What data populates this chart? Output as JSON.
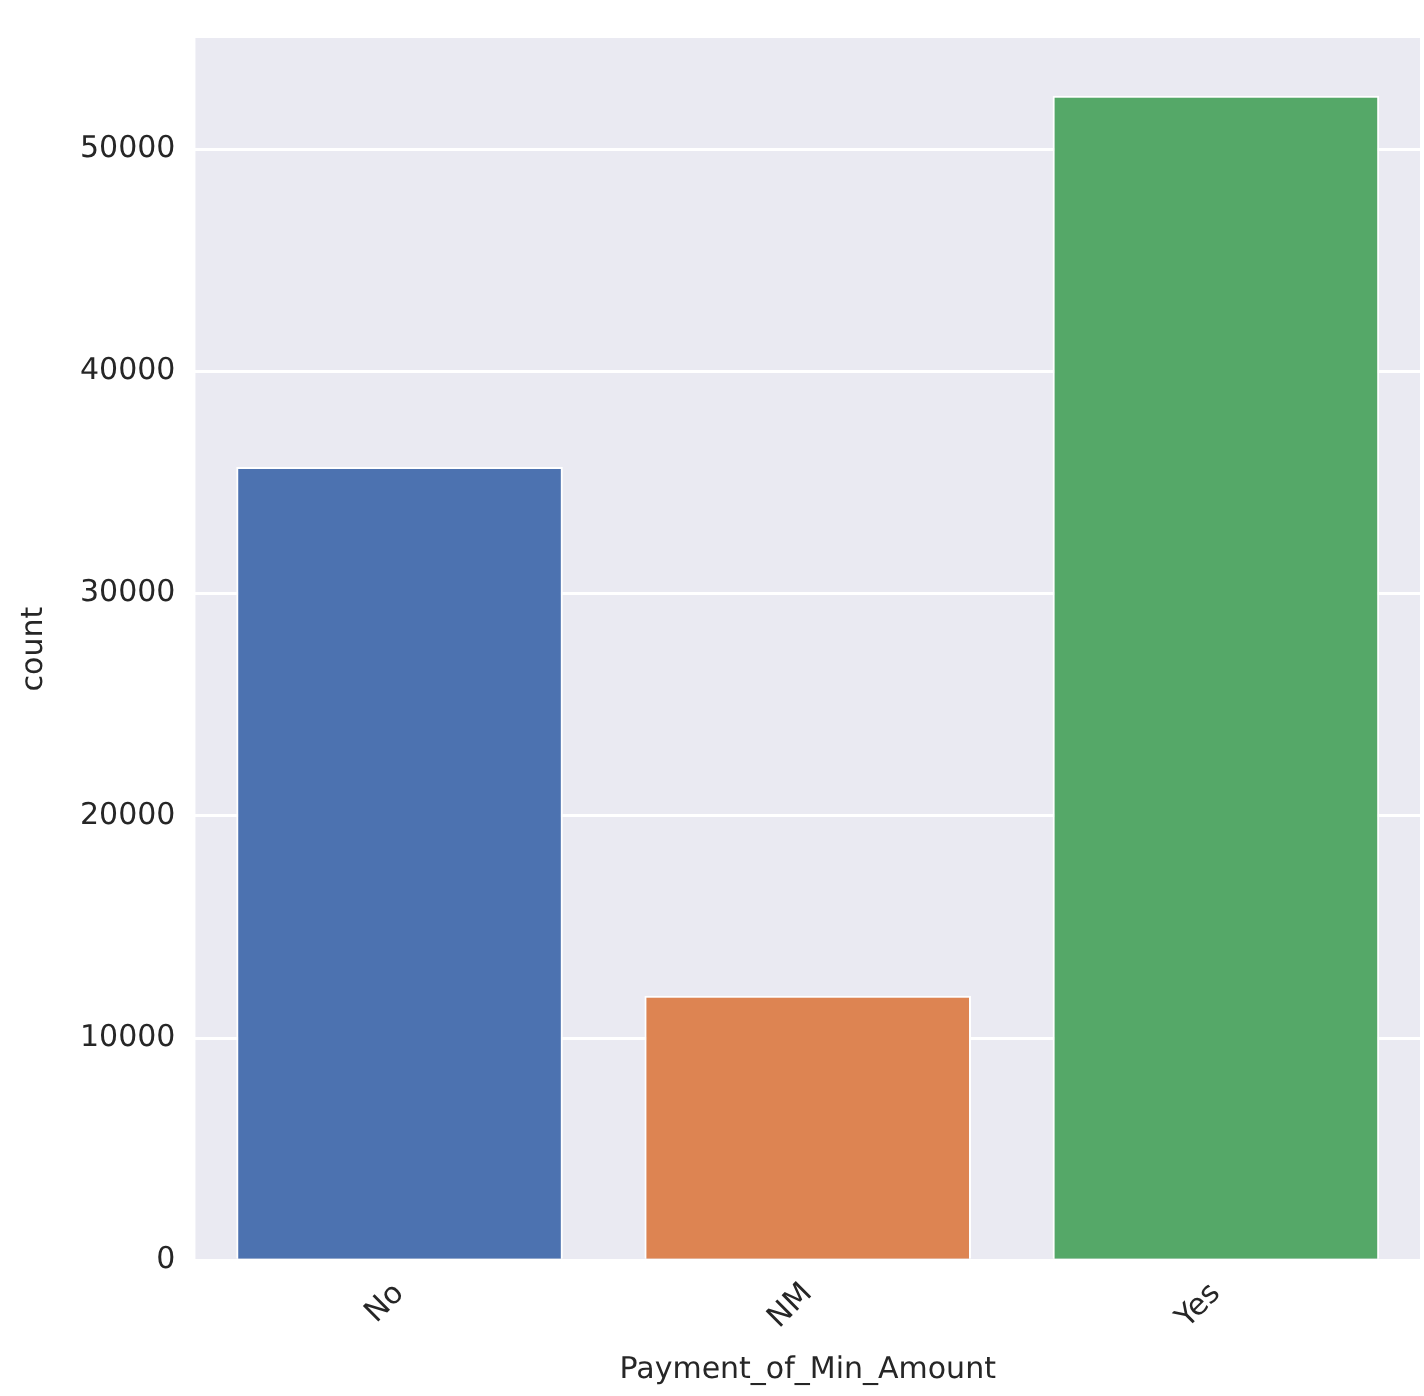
{
  "chart_data": {
    "type": "bar",
    "xlabel": "Payment_of_Min_Amount",
    "ylabel": "count",
    "categories": [
      "No",
      "NM",
      "Yes"
    ],
    "values": [
      35700,
      11900,
      52400
    ],
    "colors": [
      "#4c72b0",
      "#dd8452",
      "#55a868"
    ],
    "ylim": [
      0,
      55000
    ],
    "yticks": [
      0,
      10000,
      20000,
      30000,
      40000,
      50000
    ],
    "grid": "y",
    "legend": false
  }
}
